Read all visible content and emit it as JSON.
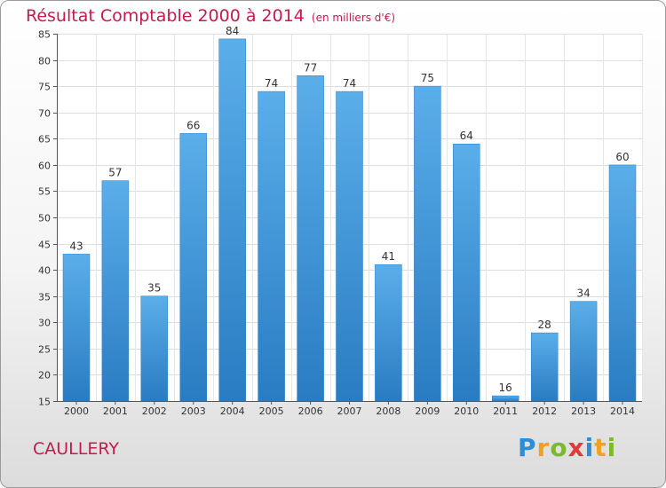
{
  "chart_data": {
    "type": "bar",
    "title": "Résultat Comptable 2000 à 2014",
    "unit": "(en milliers d'€)",
    "xlabel": "",
    "ylabel": "",
    "categories": [
      "2000",
      "2001",
      "2002",
      "2003",
      "2004",
      "2005",
      "2006",
      "2007",
      "2008",
      "2009",
      "2010",
      "2011",
      "2012",
      "2013",
      "2014"
    ],
    "values": [
      43,
      57,
      35,
      66,
      84,
      74,
      77,
      74,
      41,
      75,
      64,
      16,
      28,
      34,
      60
    ],
    "ylim": [
      15,
      85
    ],
    "yticks": [
      15,
      20,
      25,
      30,
      35,
      40,
      45,
      50,
      55,
      60,
      65,
      70,
      75,
      80,
      85
    ],
    "grid": true,
    "bar_color": "#3f97dc"
  },
  "footer": {
    "commune": "CAULLERY",
    "logo_letters": [
      "P",
      "r",
      "o",
      "x",
      "i",
      "t",
      "i"
    ]
  }
}
